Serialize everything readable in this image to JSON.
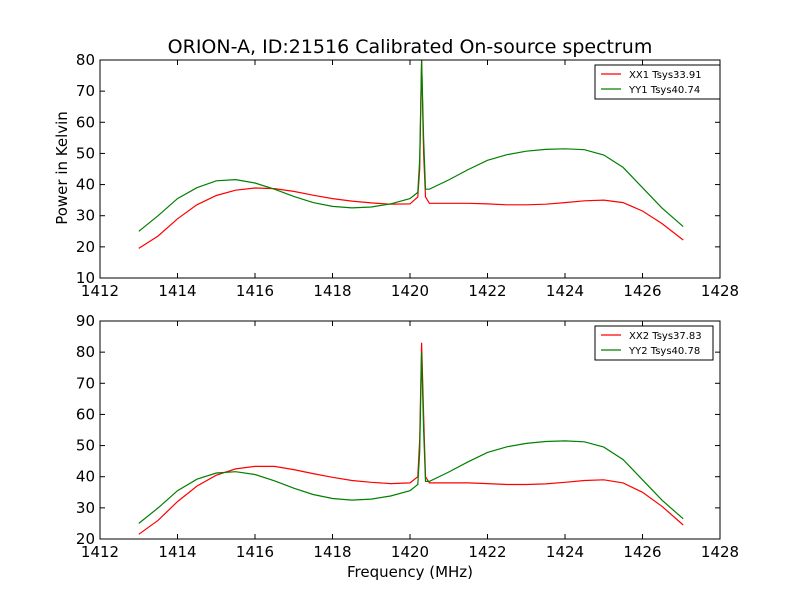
{
  "figure": {
    "title": "ORION-A, ID:21516 Calibrated On-source spectrum",
    "ylabel": "Power in Kelvin",
    "xlabel": "Frequency (MHz)"
  },
  "colors": {
    "xx": "#ff0000",
    "yy": "#008000"
  },
  "chart_data": [
    {
      "type": "line",
      "xlim": [
        1412,
        1428
      ],
      "ylim": [
        10,
        80
      ],
      "xticks": [
        1412,
        1414,
        1416,
        1418,
        1420,
        1422,
        1424,
        1426,
        1428
      ],
      "yticks": [
        10,
        20,
        30,
        40,
        50,
        60,
        70,
        80
      ],
      "legend_position": "top-right",
      "series": [
        {
          "name": "XX1 Tsys33.91",
          "color": "#ff0000",
          "x": [
            1413.0,
            1413.5,
            1414.0,
            1414.5,
            1415.0,
            1415.5,
            1416.0,
            1416.5,
            1417.0,
            1417.5,
            1418.0,
            1418.5,
            1419.0,
            1419.5,
            1420.0,
            1420.2,
            1420.25,
            1420.3,
            1420.35,
            1420.4,
            1420.5,
            1421.0,
            1421.5,
            1422.0,
            1422.5,
            1423.0,
            1423.5,
            1424.0,
            1424.5,
            1425.0,
            1425.5,
            1426.0,
            1426.5,
            1427.05
          ],
          "values": [
            19.5,
            23.5,
            29.0,
            33.5,
            36.5,
            38.2,
            38.9,
            38.7,
            37.8,
            36.6,
            35.5,
            34.7,
            34.1,
            33.7,
            33.8,
            36.0,
            45.0,
            80.0,
            50.0,
            36.0,
            34.0,
            34.0,
            34.0,
            33.8,
            33.5,
            33.5,
            33.7,
            34.2,
            34.8,
            35.0,
            34.2,
            31.5,
            27.5,
            22.2
          ]
        },
        {
          "name": "YY1 Tsys40.74",
          "color": "#008000",
          "x": [
            1413.0,
            1413.5,
            1414.0,
            1414.5,
            1415.0,
            1415.5,
            1416.0,
            1416.5,
            1417.0,
            1417.5,
            1418.0,
            1418.5,
            1419.0,
            1419.5,
            1420.0,
            1420.2,
            1420.25,
            1420.3,
            1420.35,
            1420.4,
            1420.5,
            1421.0,
            1421.5,
            1422.0,
            1422.5,
            1423.0,
            1423.5,
            1424.0,
            1424.5,
            1425.0,
            1425.5,
            1426.0,
            1426.5,
            1427.05
          ],
          "values": [
            25.0,
            30.0,
            35.5,
            39.0,
            41.2,
            41.6,
            40.5,
            38.5,
            36.2,
            34.2,
            33.0,
            32.5,
            32.8,
            33.8,
            35.5,
            37.5,
            48.0,
            80.0,
            55.0,
            38.5,
            38.5,
            41.5,
            44.8,
            47.8,
            49.6,
            50.7,
            51.3,
            51.5,
            51.2,
            49.5,
            45.5,
            39.0,
            32.5,
            26.5
          ]
        }
      ]
    },
    {
      "type": "line",
      "xlim": [
        1412,
        1428
      ],
      "ylim": [
        20,
        90
      ],
      "xticks": [
        1412,
        1414,
        1416,
        1418,
        1420,
        1422,
        1424,
        1426,
        1428
      ],
      "yticks": [
        20,
        30,
        40,
        50,
        60,
        70,
        80,
        90
      ],
      "legend_position": "top-right",
      "series": [
        {
          "name": "XX2 Tsys37.83",
          "color": "#ff0000",
          "x": [
            1413.0,
            1413.5,
            1414.0,
            1414.5,
            1415.0,
            1415.5,
            1416.0,
            1416.5,
            1417.0,
            1417.5,
            1418.0,
            1418.5,
            1419.0,
            1419.5,
            1420.0,
            1420.2,
            1420.25,
            1420.3,
            1420.35,
            1420.4,
            1420.5,
            1421.0,
            1421.5,
            1422.0,
            1422.5,
            1423.0,
            1423.5,
            1424.0,
            1424.5,
            1425.0,
            1425.5,
            1426.0,
            1426.5,
            1427.05
          ],
          "values": [
            21.5,
            26.0,
            32.0,
            37.0,
            40.5,
            42.5,
            43.3,
            43.3,
            42.3,
            41.0,
            39.8,
            38.8,
            38.2,
            37.8,
            38.0,
            40.0,
            52.0,
            83.0,
            60.0,
            40.0,
            38.0,
            38.0,
            38.0,
            37.8,
            37.5,
            37.5,
            37.7,
            38.2,
            38.8,
            39.0,
            38.0,
            35.0,
            30.5,
            24.5
          ]
        },
        {
          "name": "YY2 Tsys40.78",
          "color": "#008000",
          "x": [
            1413.0,
            1413.5,
            1414.0,
            1414.5,
            1415.0,
            1415.5,
            1416.0,
            1416.5,
            1417.0,
            1417.5,
            1418.0,
            1418.5,
            1419.0,
            1419.5,
            1420.0,
            1420.2,
            1420.25,
            1420.3,
            1420.35,
            1420.4,
            1420.5,
            1421.0,
            1421.5,
            1422.0,
            1422.5,
            1423.0,
            1423.5,
            1424.0,
            1424.5,
            1425.0,
            1425.5,
            1426.0,
            1426.5,
            1427.05
          ],
          "values": [
            25.0,
            30.0,
            35.5,
            39.2,
            41.2,
            41.6,
            40.7,
            38.7,
            36.3,
            34.3,
            33.0,
            32.5,
            32.8,
            33.8,
            35.5,
            37.5,
            48.0,
            80.0,
            55.0,
            38.5,
            38.5,
            41.5,
            44.8,
            47.8,
            49.6,
            50.7,
            51.3,
            51.5,
            51.2,
            49.5,
            45.5,
            39.0,
            32.5,
            26.5
          ]
        }
      ]
    }
  ]
}
